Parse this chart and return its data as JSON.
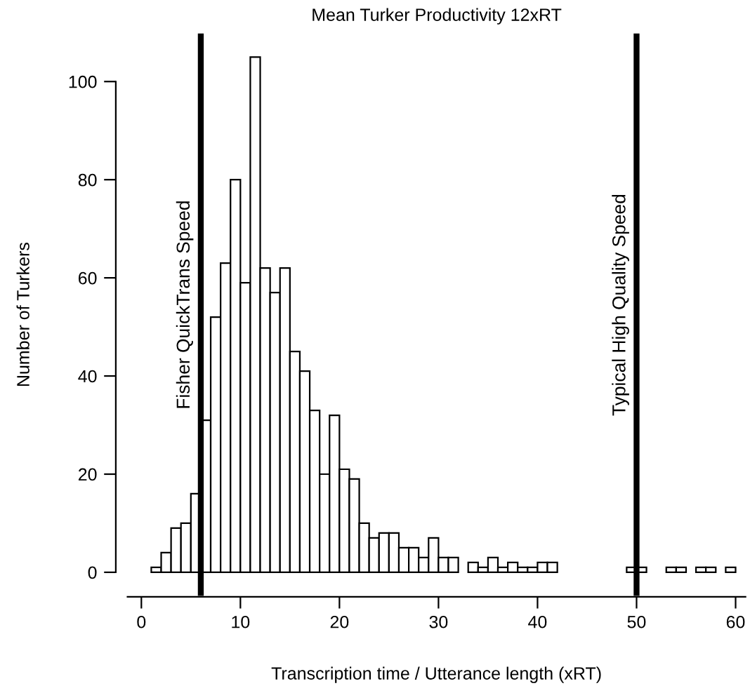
{
  "chart_data": {
    "type": "histogram",
    "title": "Mean Turker Productivity 12xRT",
    "xlabel": "Transcription time / Utterance length (xRT)",
    "ylabel": "Number of Turkers",
    "bins": [
      1,
      2,
      3,
      4,
      5,
      6,
      7,
      8,
      9,
      10,
      11,
      12,
      13,
      14,
      15,
      16,
      17,
      18,
      19,
      20,
      21,
      22,
      23,
      24,
      25,
      26,
      27,
      28,
      29,
      30,
      31,
      32,
      33,
      34,
      35,
      36,
      37,
      38,
      39,
      40,
      41,
      42,
      43,
      44,
      45,
      46,
      47,
      48,
      49,
      50,
      51,
      52,
      53,
      54,
      55,
      56,
      57,
      58,
      59,
      60
    ],
    "values": [
      1,
      4,
      9,
      10,
      16,
      31,
      52,
      63,
      80,
      59,
      105,
      62,
      57,
      62,
      45,
      41,
      33,
      20,
      32,
      21,
      19,
      10,
      7,
      8,
      8,
      5,
      5,
      3,
      7,
      3,
      3,
      0,
      2,
      1,
      3,
      1,
      2,
      1,
      1,
      2,
      2,
      0,
      0,
      0,
      0,
      0,
      0,
      0,
      1,
      1,
      0,
      0,
      1,
      1,
      0,
      1,
      1,
      0,
      1
    ],
    "color": "#ffffff",
    "xlim": [
      -1.4,
      61
    ],
    "ylim": [
      -4.2,
      109.2
    ],
    "xticks": [
      0,
      10,
      20,
      30,
      40,
      50,
      60
    ],
    "yticks": [
      0,
      20,
      40,
      60,
      80,
      100
    ],
    "grid": false,
    "legend": false,
    "ref_lines": [
      {
        "axis": "x",
        "value": 6,
        "label": "Fisher QuickTrans Speed",
        "color": "#000000"
      },
      {
        "axis": "x",
        "value": 50,
        "label": "Typical High Quality Speed",
        "color": "#000000"
      }
    ]
  }
}
